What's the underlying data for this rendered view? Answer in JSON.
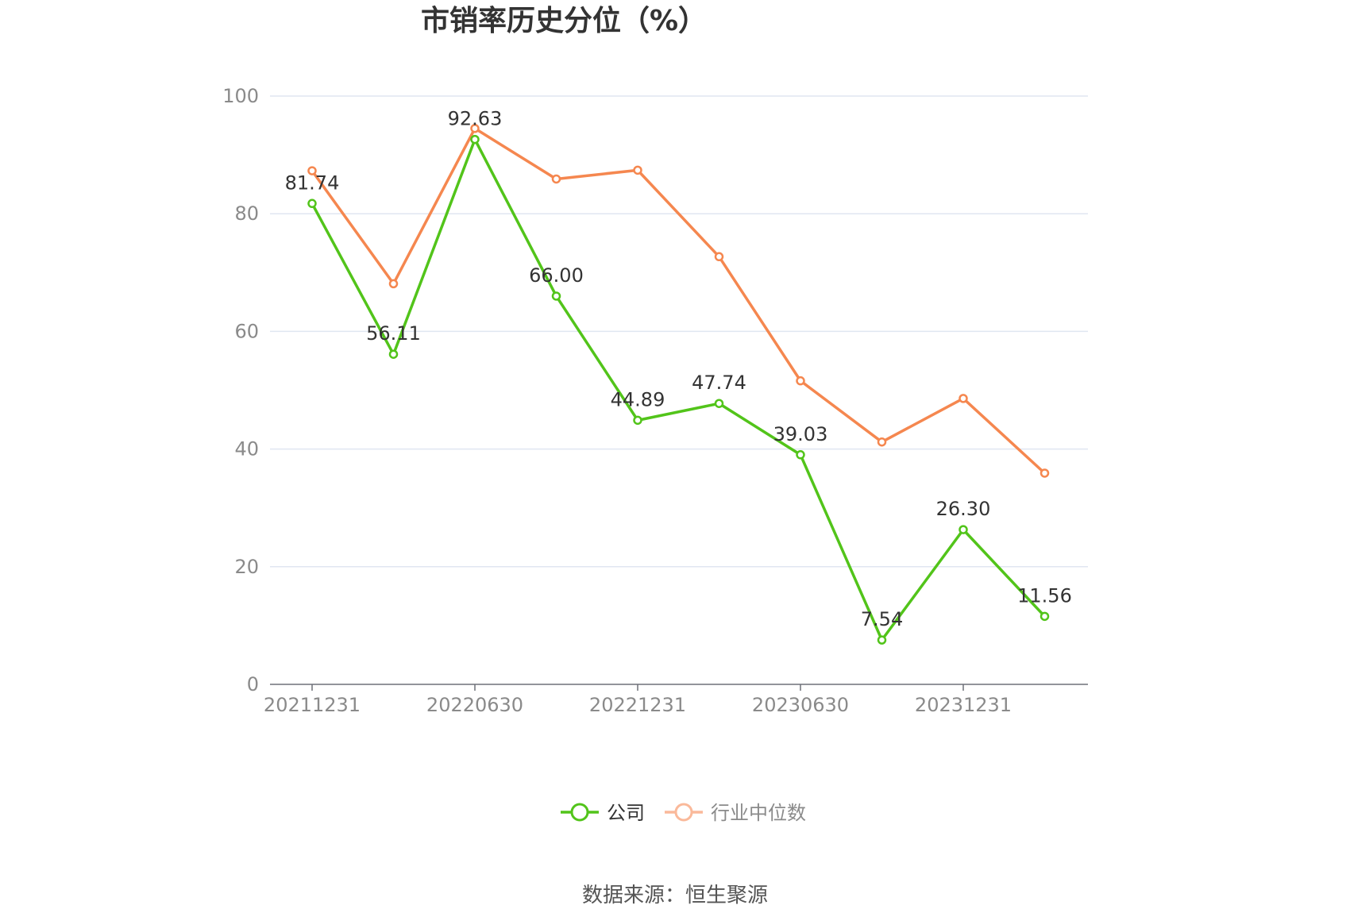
{
  "chart_data": {
    "type": "line",
    "title": "市销率历史分位（%）",
    "xlabel": "",
    "ylabel": "",
    "ylim": [
      0,
      100
    ],
    "yticks": [
      0,
      20,
      40,
      60,
      80,
      100
    ],
    "x_tick_labels": [
      "20211231",
      "20220630",
      "20221231",
      "20230630",
      "20231231"
    ],
    "categories": [
      "20211231",
      "20220331",
      "20220630",
      "20220930",
      "20221231",
      "20230331",
      "20230630",
      "20230930",
      "20231231",
      "20240331"
    ],
    "grid": "horizontal",
    "legend_position": "bottom",
    "series": [
      {
        "name": "公司",
        "color": "#52c41a",
        "values": [
          81.74,
          56.11,
          92.63,
          66.0,
          44.89,
          47.74,
          39.03,
          7.54,
          26.3,
          11.56
        ],
        "labels": [
          "81.74",
          "56.11",
          "92.63",
          "66.00",
          "44.89",
          "47.74",
          "39.03",
          "7.54",
          "26.30",
          "11.56"
        ]
      },
      {
        "name": "行业中位数",
        "color": "#f5874f",
        "legend_color": "#fab99a",
        "values": [
          87.3,
          68.1,
          94.5,
          85.9,
          87.4,
          72.7,
          51.6,
          41.2,
          48.6,
          35.9
        ]
      }
    ]
  },
  "source_text": "数据来源：恒生聚源"
}
